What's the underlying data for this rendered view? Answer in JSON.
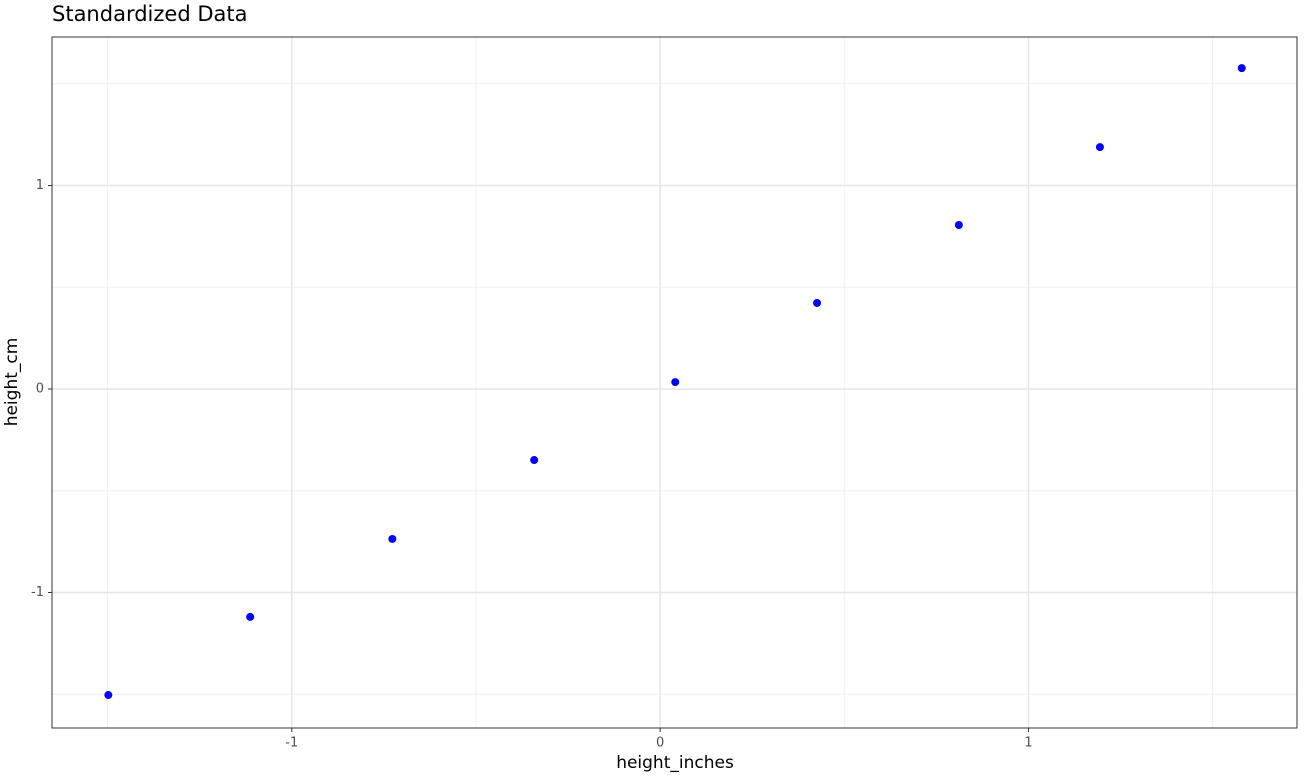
{
  "chart_data": {
    "type": "scatter",
    "title": "Standardized Data",
    "x_label": "height_inches",
    "y_label": "height_cm",
    "series": [
      {
        "name": "points",
        "color": "#0000ff",
        "x": [
          -1.498,
          -1.113,
          -0.727,
          -0.342,
          0.041,
          0.426,
          0.811,
          1.194,
          1.579
        ],
        "values": [
          -1.504,
          -1.12,
          -0.737,
          -0.349,
          0.034,
          0.423,
          0.806,
          1.189,
          1.577
        ]
      }
    ],
    "xlim": [
      -1.651,
      1.729
    ],
    "ylim": [
      -1.666,
      1.73
    ],
    "xticks": [
      -1,
      0,
      1
    ],
    "yticks": [
      -1,
      0,
      1
    ],
    "xminor": [
      -1.5,
      -0.5,
      0.5,
      1.5
    ],
    "yminor": [
      -1.5,
      -0.5,
      0.5,
      1.5
    ],
    "grid": true
  }
}
